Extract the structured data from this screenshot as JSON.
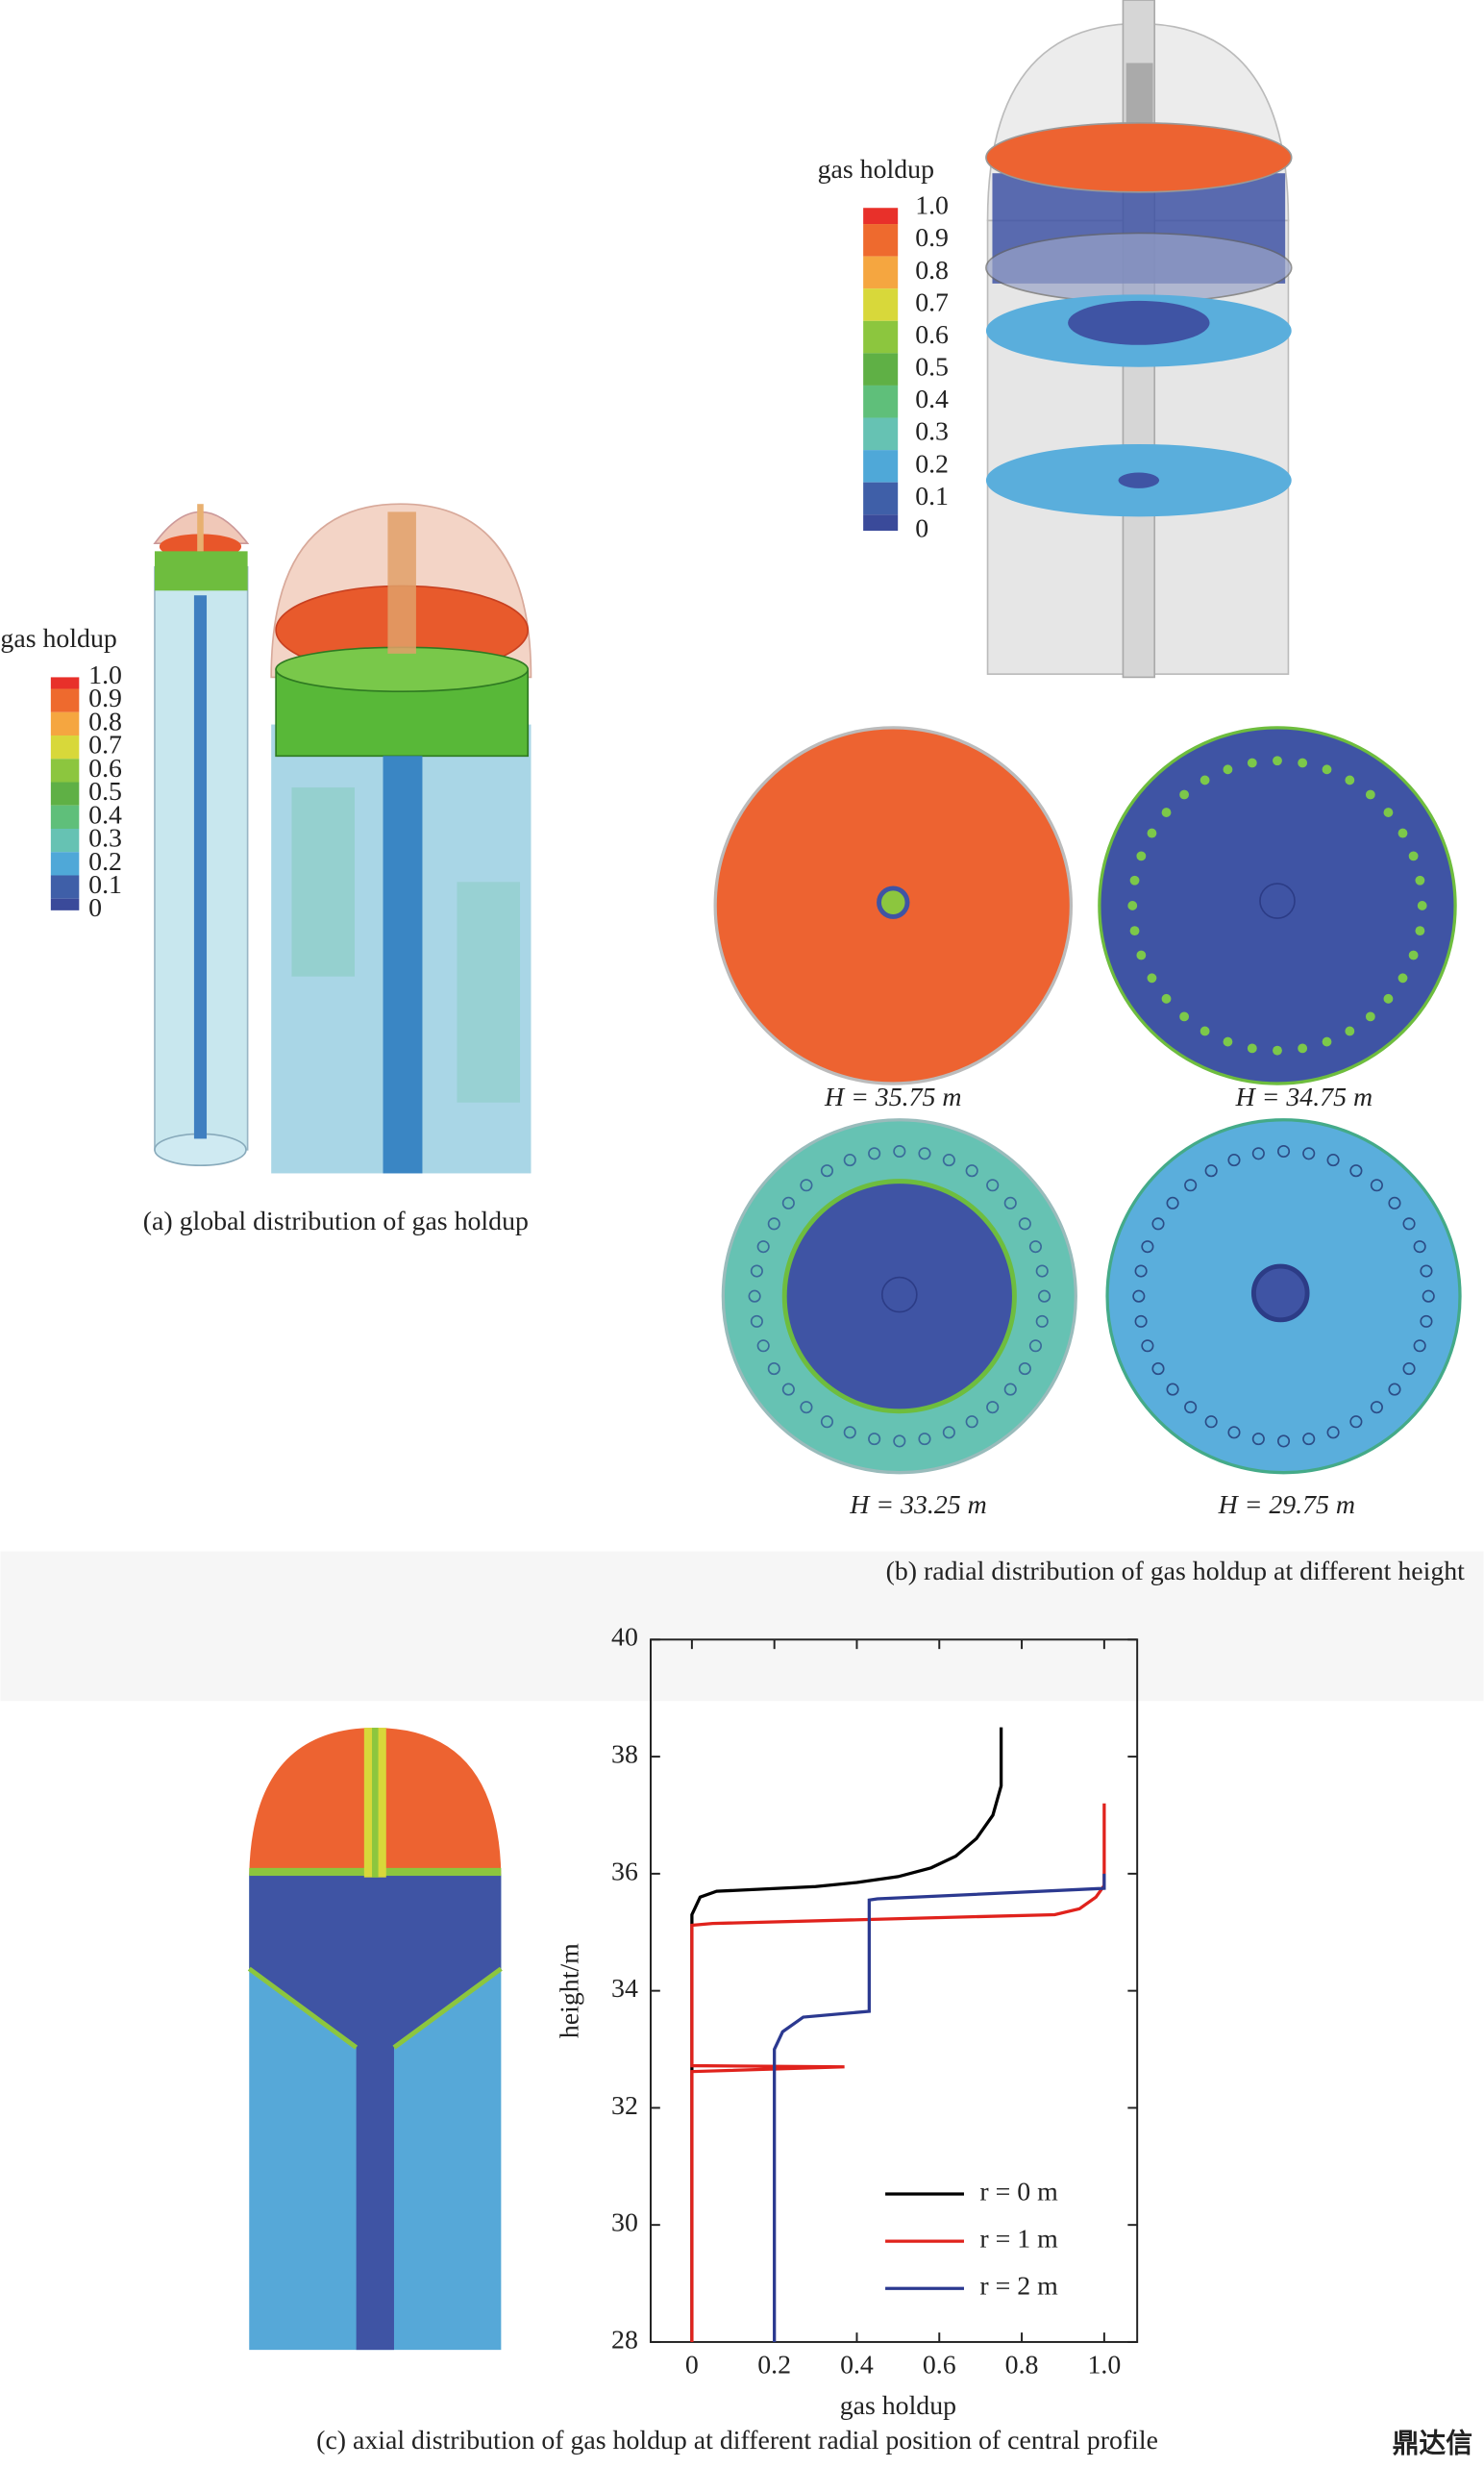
{
  "panel_a": {
    "colorbar_title": "gas holdup",
    "colorbar_labels": [
      "1.0",
      "0.9",
      "0.8",
      "0.7",
      "0.6",
      "0.5",
      "0.4",
      "0.3",
      "0.2",
      "0.1",
      "0"
    ],
    "caption": "(a) global distribution of gas holdup"
  },
  "panel_b": {
    "colorbar_title": "gas holdup",
    "colorbar_labels": [
      "1.0",
      "0.9",
      "0.8",
      "0.7",
      "0.6",
      "0.5",
      "0.4",
      "0.3",
      "0.2",
      "0.1",
      "0"
    ],
    "sections": [
      "H = 35.75 m",
      "H = 34.75 m",
      "H = 33.25 m",
      "H = 29.75 m"
    ],
    "caption": "(b) radial distribution of gas holdup at different height"
  },
  "panel_c": {
    "caption": "(c) axial distribution of gas holdup at different radial position of central profile"
  },
  "watermark": "鼎达信",
  "chart_data": {
    "type": "line",
    "xlabel": "gas holdup",
    "ylabel": "height/m",
    "xlim": [
      -0.1,
      1.08
    ],
    "ylim": [
      28,
      40
    ],
    "xticks": [
      0,
      0.2,
      0.4,
      0.6,
      0.8,
      {
        "value": 1,
        "label": "1.0"
      }
    ],
    "yticks": [
      28,
      30,
      32,
      34,
      36,
      38,
      40
    ],
    "series": [
      {
        "name": "r = 0 m",
        "color": "#000000",
        "x": [
          0,
          0,
          0.02,
          0.06,
          0.3,
          0.4,
          0.5,
          0.58,
          0.64,
          0.69,
          0.73,
          0.75,
          0.75
        ],
        "values": [
          28,
          35.3,
          35.6,
          35.7,
          35.78,
          35.85,
          35.95,
          36.1,
          36.3,
          36.6,
          37.0,
          37.5,
          38.5
        ]
      },
      {
        "name": "r = 1 m",
        "color": "#e0221c",
        "x": [
          0,
          0,
          0.37,
          0,
          0,
          0.05,
          0.88,
          0.94,
          0.98,
          1,
          1
        ],
        "values": [
          28,
          32.62,
          32.7,
          32.72,
          35.12,
          35.15,
          35.3,
          35.4,
          35.6,
          35.8,
          37.2
        ]
      },
      {
        "name": "r = 2 m",
        "color": "#2b3990",
        "x": [
          0.2,
          0.2,
          0.22,
          0.27,
          0.43,
          0.43,
          0.45,
          1,
          1
        ],
        "values": [
          28,
          33.0,
          33.3,
          33.55,
          33.65,
          35.55,
          35.57,
          35.75,
          36.0
        ]
      }
    ]
  }
}
